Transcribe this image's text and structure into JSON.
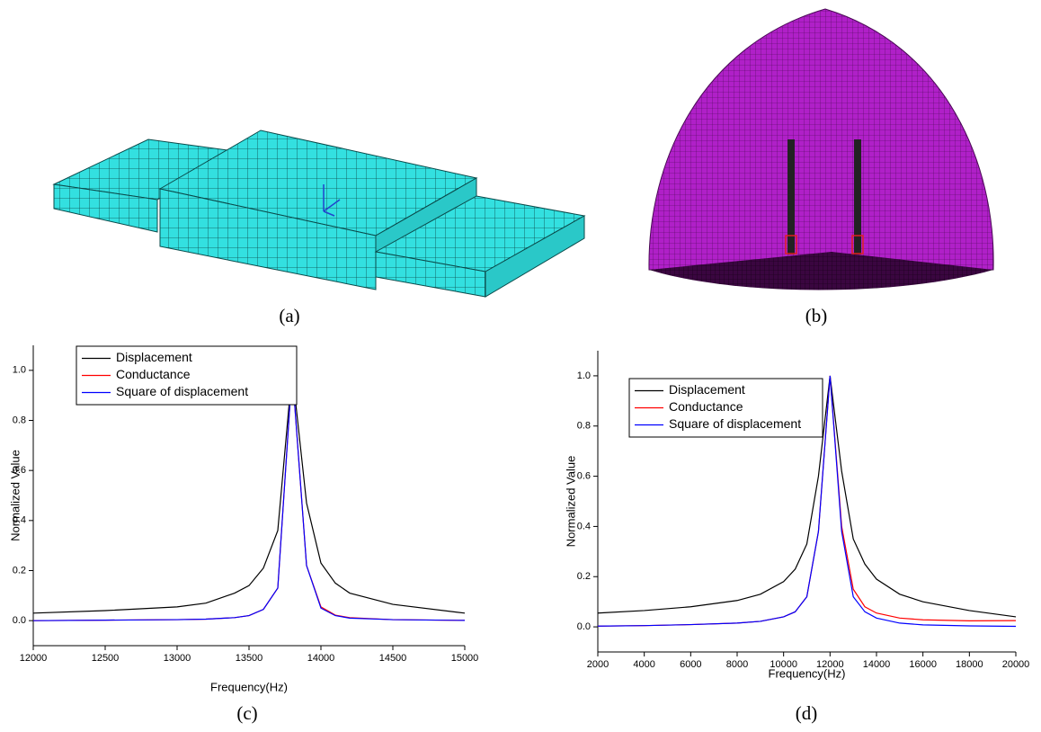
{
  "panel_labels": [
    "(a)",
    "(b)",
    "(c)",
    "(d)"
  ],
  "chart_data": [
    {
      "type": "line",
      "x_label": "Frequency(Hz)",
      "y_label": "Normalized Value",
      "x": [
        12000,
        12500,
        13000,
        13200,
        13400,
        13500,
        13600,
        13700,
        13800,
        13900,
        14000,
        14100,
        14200,
        14500,
        15000
      ],
      "series": [
        {
          "name": "Displacement",
          "color": "#000000",
          "values": [
            0.03,
            0.04,
            0.055,
            0.07,
            0.11,
            0.14,
            0.21,
            0.36,
            1.0,
            0.47,
            0.23,
            0.15,
            0.11,
            0.065,
            0.03
          ]
        },
        {
          "name": "Conductance",
          "color": "#ff0000",
          "values": [
            0.0,
            0.002,
            0.004,
            0.006,
            0.012,
            0.02,
            0.045,
            0.13,
            1.0,
            0.22,
            0.055,
            0.022,
            0.012,
            0.004,
            0.001
          ]
        },
        {
          "name": "Square of displacement",
          "color": "#0000ff",
          "values": [
            0.0,
            0.002,
            0.004,
            0.006,
            0.012,
            0.02,
            0.045,
            0.13,
            1.0,
            0.22,
            0.05,
            0.02,
            0.01,
            0.004,
            0.001
          ]
        }
      ],
      "xlim": [
        12000,
        15000
      ],
      "xticks": [
        12000,
        12500,
        13000,
        13500,
        14000,
        14500,
        15000
      ],
      "ylim": [
        -0.1,
        1.1
      ],
      "yticks": [
        {
          "value": 0,
          "label": "0.0"
        },
        0.2,
        0.4,
        0.6,
        0.8,
        {
          "value": 1,
          "label": "1.0"
        }
      ],
      "legend": "upper left"
    },
    {
      "type": "line",
      "x_label": "Frequency(Hz)",
      "y_label": "Normalized Value",
      "x": [
        2000,
        4000,
        6000,
        8000,
        9000,
        10000,
        10500,
        11000,
        11500,
        12000,
        12500,
        13000,
        13500,
        14000,
        15000,
        16000,
        18000,
        20000
      ],
      "series": [
        {
          "name": "Displacement",
          "color": "#000000",
          "values": [
            0.055,
            0.065,
            0.08,
            0.105,
            0.13,
            0.18,
            0.23,
            0.33,
            0.6,
            1.0,
            0.62,
            0.35,
            0.25,
            0.19,
            0.13,
            0.1,
            0.065,
            0.04
          ]
        },
        {
          "name": "Conductance",
          "color": "#ff0000",
          "values": [
            0.003,
            0.005,
            0.009,
            0.015,
            0.022,
            0.04,
            0.06,
            0.12,
            0.38,
            1.0,
            0.4,
            0.15,
            0.08,
            0.055,
            0.035,
            0.028,
            0.024,
            0.025
          ]
        },
        {
          "name": "Square of displacement",
          "color": "#0000ff",
          "values": [
            0.003,
            0.005,
            0.009,
            0.015,
            0.022,
            0.04,
            0.06,
            0.12,
            0.38,
            1.0,
            0.38,
            0.12,
            0.06,
            0.035,
            0.015,
            0.008,
            0.004,
            0.002
          ]
        }
      ],
      "xlim": [
        2000,
        20000
      ],
      "xticks": [
        2000,
        4000,
        6000,
        8000,
        10000,
        12000,
        14000,
        16000,
        18000,
        20000
      ],
      "ylim": [
        -0.1,
        1.1
      ],
      "yticks": [
        {
          "value": 0,
          "label": "0.0"
        },
        0.2,
        0.4,
        0.6,
        0.8,
        {
          "value": 1,
          "label": "1.0"
        }
      ],
      "legend": "upper left"
    }
  ]
}
